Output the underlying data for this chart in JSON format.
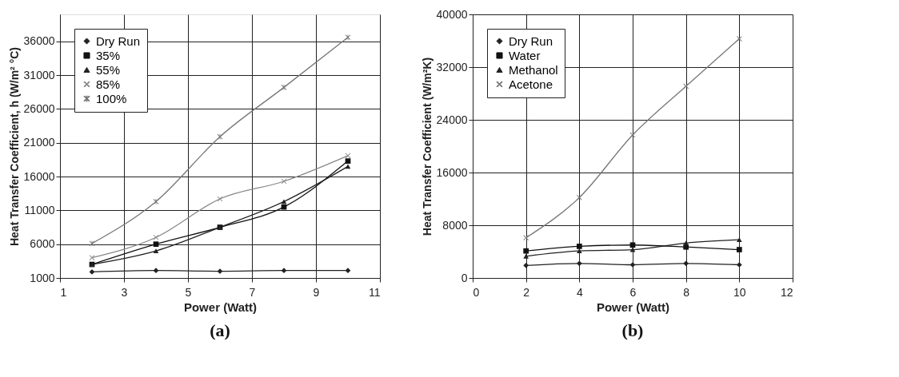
{
  "chart_data": [
    {
      "type": "line",
      "title": "(a)",
      "xlabel": "Power (Watt)",
      "ylabel": "Heat Transfer Coefficient, h (W/m² °C)",
      "x": [
        2,
        4,
        6,
        8,
        10
      ],
      "xlim": [
        1,
        11
      ],
      "xticks": [
        1,
        3,
        5,
        7,
        9,
        11
      ],
      "ylim": [
        1000,
        40000
      ],
      "yticks": [
        1000,
        6000,
        11000,
        16000,
        21000,
        26000,
        31000,
        36000
      ],
      "grid": true,
      "legend": "top left",
      "line_style": "solid",
      "series": [
        {
          "name": "Dry Run",
          "color": "#222222",
          "marker": "diamond",
          "values": [
            1900,
            2100,
            2000,
            2100,
            2100
          ]
        },
        {
          "name": "35%",
          "color": "#111111",
          "marker": "square",
          "values": [
            3000,
            6000,
            8500,
            11500,
            18300
          ]
        },
        {
          "name": "55%",
          "color": "#222222",
          "marker": "triangle",
          "values": [
            3000,
            5000,
            8500,
            12300,
            17500
          ]
        },
        {
          "name": "85%",
          "color": "#888888",
          "marker": "cross",
          "values": [
            4000,
            7000,
            12700,
            15300,
            19100
          ]
        },
        {
          "name": "100%",
          "color": "#777777",
          "marker": "star",
          "values": [
            6100,
            12300,
            21900,
            29200,
            36600
          ]
        }
      ]
    },
    {
      "type": "line",
      "title": "(b)",
      "xlabel": "Power (Watt)",
      "ylabel": "Heat Transfer Coefficient (W/m²K)",
      "x": [
        2,
        4,
        6,
        8,
        10
      ],
      "xlim": [
        0,
        12
      ],
      "xticks": [
        0,
        2,
        4,
        6,
        8,
        10,
        12
      ],
      "ylim": [
        0,
        40000
      ],
      "yticks": [
        0,
        8000,
        16000,
        24000,
        32000,
        40000
      ],
      "grid": true,
      "legend": "top left",
      "line_style": "solid",
      "series": [
        {
          "name": "Dry Run",
          "color": "#222222",
          "marker": "diamond",
          "values": [
            1900,
            2200,
            2000,
            2200,
            2000
          ]
        },
        {
          "name": "Water",
          "color": "#111111",
          "marker": "square",
          "values": [
            4100,
            4800,
            5000,
            4700,
            4300
          ]
        },
        {
          "name": "Methanol",
          "color": "#222222",
          "marker": "triangle",
          "values": [
            3300,
            4100,
            4300,
            5300,
            5800
          ]
        },
        {
          "name": "Acetone",
          "color": "#777777",
          "marker": "cross",
          "values": [
            6100,
            12200,
            21700,
            29100,
            36300
          ]
        }
      ]
    }
  ]
}
